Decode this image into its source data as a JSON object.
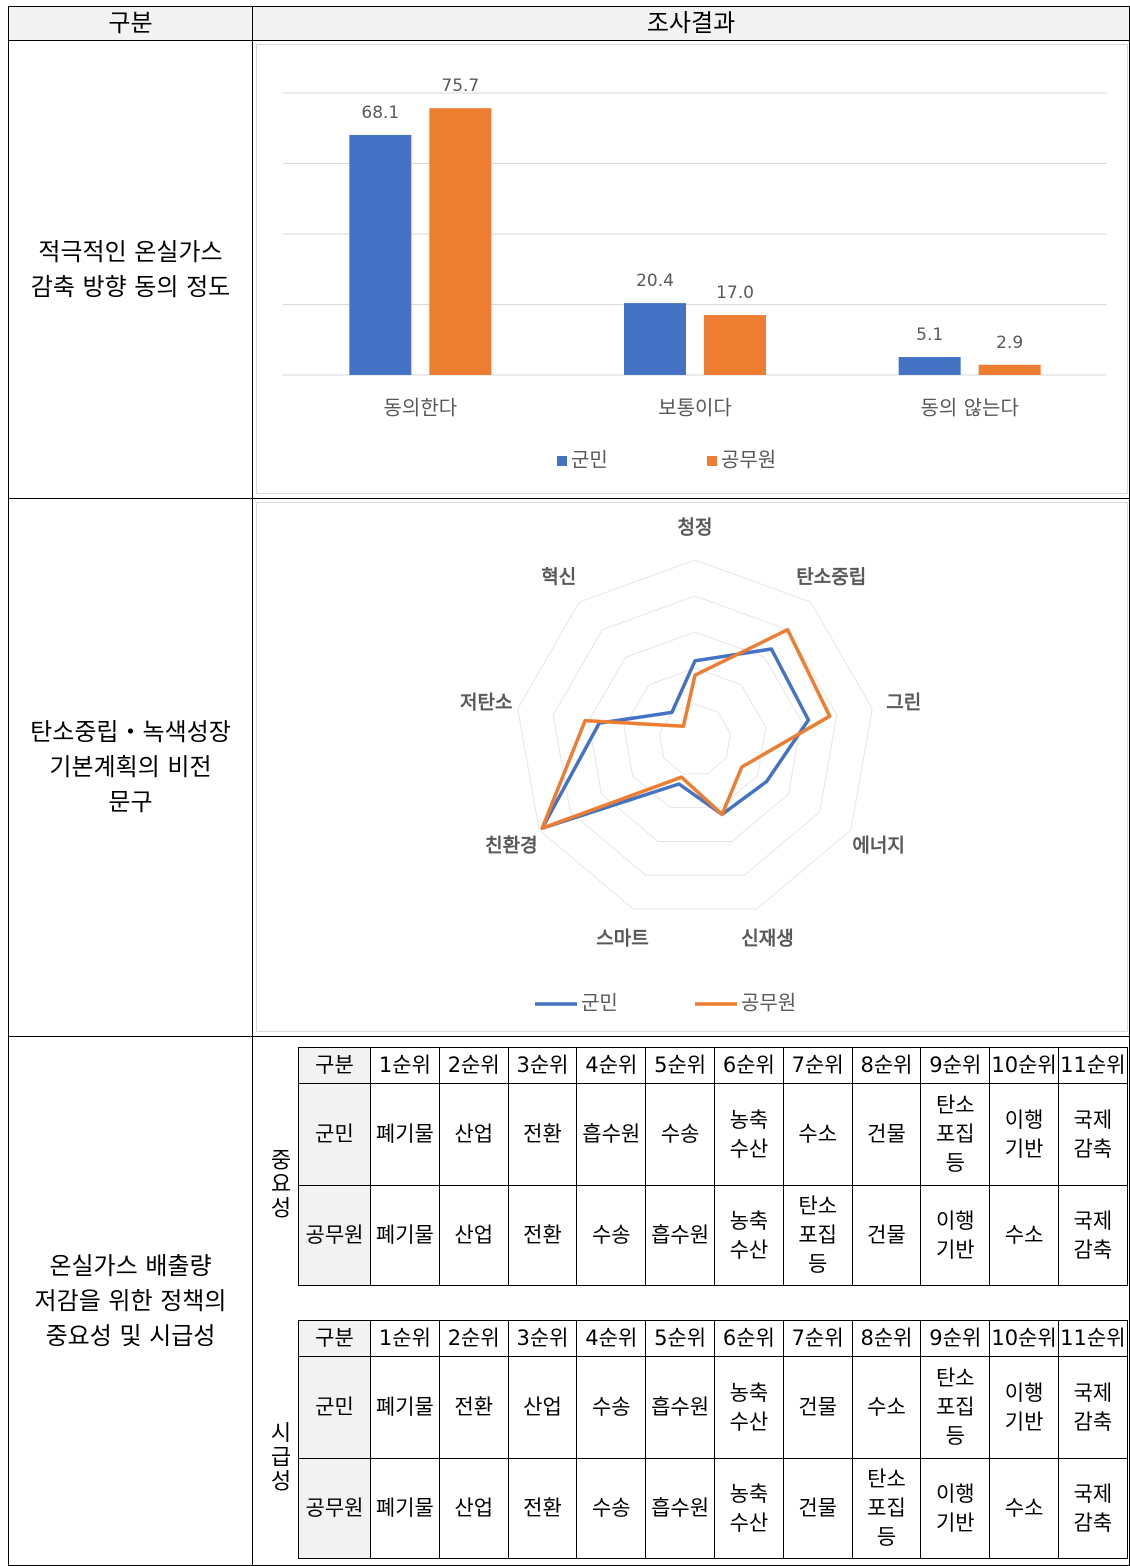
{
  "header": [
    "구분",
    "조사결과"
  ],
  "sections": [
    {
      "label": "적극적인 온실가스\n감축 방향 동의 정도"
    },
    {
      "label": "탄소중립・녹색성장\n기본계획의 비전\n문구"
    },
    {
      "label": "온실가스 배출량\n저감을 위한 정책의\n중요성 및 시급성"
    }
  ],
  "chart_data": [
    {
      "type": "bar",
      "categories": [
        "동의한다",
        "보통이다",
        "동의 않는다"
      ],
      "series": [
        {
          "name": "군민",
          "color": "#4472c4",
          "values": [
            68.1,
            20.4,
            5.1
          ],
          "value_labels": [
            "68.1",
            "20.4",
            "5.1"
          ]
        },
        {
          "name": "공무원",
          "color": "#ed7d31",
          "values": [
            75.7,
            17.0,
            2.9
          ],
          "value_labels": [
            "75.7",
            "17.0",
            "2.9"
          ]
        }
      ],
      "ylim": [
        0,
        80
      ],
      "yticks": [
        0,
        20,
        40,
        60,
        80
      ],
      "grid": true,
      "legend": "bottom"
    },
    {
      "type": "radar",
      "categories": [
        "청정",
        "탄소중립",
        "그린",
        "에너지",
        "신재생",
        "스마트",
        "친환경",
        "저탄소",
        "혁신"
      ],
      "series": [
        {
          "name": "군민",
          "color": "#4472c4",
          "values": [
            22,
            33,
            32,
            23,
            22,
            13,
            49,
            27,
            10
          ]
        },
        {
          "name": "공무원",
          "color": "#ed7d31",
          "values": [
            18,
            40,
            38,
            15,
            22,
            11,
            49,
            31,
            5
          ]
        }
      ],
      "ylim": [
        0,
        50
      ],
      "yticks": [
        0,
        10,
        20,
        30,
        40,
        50
      ],
      "grid": true,
      "legend": "bottom"
    }
  ],
  "tables": [
    {
      "side": "중요성",
      "columns": [
        "구분",
        "1순위",
        "2순위",
        "3순위",
        "4순위",
        "5순위",
        "6순위",
        "7순위",
        "8순위",
        "9순위",
        "10순위",
        "11순위"
      ],
      "rows": [
        [
          "군민",
          "폐기물",
          "산업",
          "전환",
          "흡수원",
          "수송",
          "농축\n수산",
          "수소",
          "건물",
          "탄소\n포집\n등",
          "이행\n기반",
          "국제\n감축"
        ],
        [
          "공무원",
          "폐기물",
          "산업",
          "전환",
          "수송",
          "흡수원",
          "농축\n수산",
          "탄소\n포집\n등",
          "건물",
          "이행\n기반",
          "수소",
          "국제\n감축"
        ]
      ]
    },
    {
      "side": "시급성",
      "columns": [
        "구분",
        "1순위",
        "2순위",
        "3순위",
        "4순위",
        "5순위",
        "6순위",
        "7순위",
        "8순위",
        "9순위",
        "10순위",
        "11순위"
      ],
      "rows": [
        [
          "군민",
          "폐기물",
          "전환",
          "산업",
          "수송",
          "흡수원",
          "농축\n수산",
          "건물",
          "수소",
          "탄소\n포집\n등",
          "이행\n기반",
          "국제\n감축"
        ],
        [
          "공무원",
          "폐기물",
          "산업",
          "전환",
          "수송",
          "흡수원",
          "농축\n수산",
          "건물",
          "탄소\n포집\n등",
          "이행\n기반",
          "수소",
          "국제\n감축"
        ]
      ]
    }
  ]
}
